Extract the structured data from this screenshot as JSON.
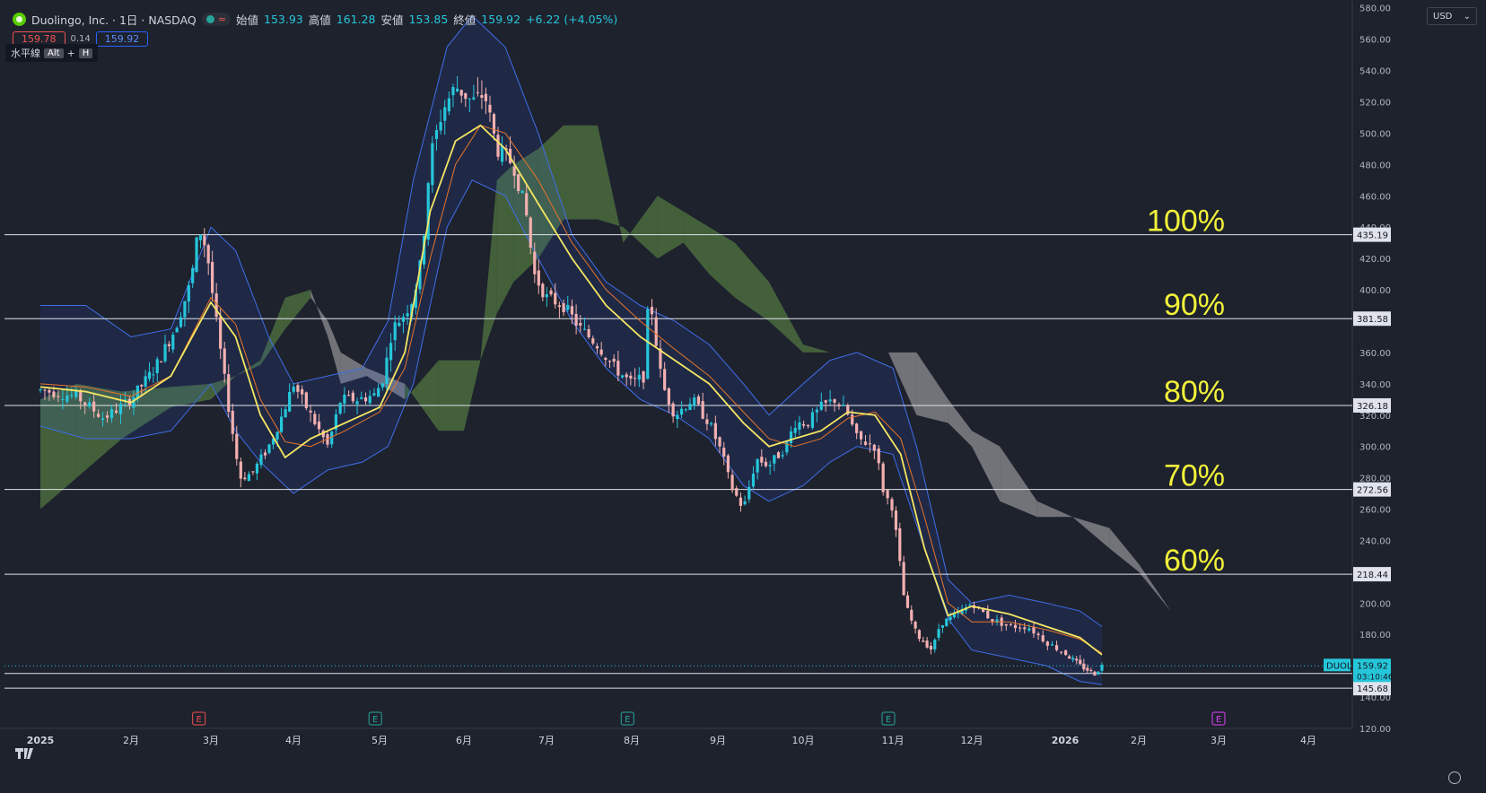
{
  "header": {
    "title": "Duolingo, Inc. · 1日 · NASDAQ",
    "open_label": "始値",
    "open_value": "153.93",
    "high_label": "高値",
    "high_value": "161.28",
    "low_label": "安値",
    "low_value": "153.85",
    "close_label": "終値",
    "close_value": "159.92",
    "change": "+6.22 (+4.05%)"
  },
  "trade": {
    "bid": "159.78",
    "spread": "0.14",
    "ask": "159.92"
  },
  "tooltip": {
    "tool": "水平線",
    "key1": "Alt",
    "plus": "+",
    "key2": "H"
  },
  "currency": "USD",
  "colors": {
    "bg": "#1e222d",
    "up": "#26c6da",
    "down": "#f4b0b0",
    "ema_fast": "#f5e663",
    "ema_slow": "#e8742a",
    "bb": "#3f6ee8",
    "cloud_bull": "#4a6b3e",
    "cloud_bear": "#8e8f93",
    "fib_label": "#f2f23a"
  },
  "chart_data": {
    "type": "candlestick",
    "symbol": "DUOL",
    "ylim": [
      120,
      585
    ],
    "yticks": [
      120,
      140,
      160,
      180,
      200,
      220,
      240,
      260,
      280,
      300,
      320,
      340,
      360,
      380,
      400,
      420,
      440,
      460,
      480,
      500,
      520,
      540,
      560,
      580
    ],
    "ytick_labels": [
      "120.00",
      "140.00",
      "160.00",
      "180.00",
      "200.00",
      "220.00",
      "240.00",
      "260.00",
      "280.00",
      "300.00",
      "320.00",
      "340.00",
      "360.00",
      "380.00",
      "400.00",
      "420.00",
      "440.00",
      "460.00",
      "480.00",
      "500.00",
      "520.00",
      "540.00",
      "560.00",
      "580.00"
    ],
    "xticks": [
      {
        "label": "2025",
        "t": 0
      },
      {
        "label": "2月",
        "t": 1
      },
      {
        "label": "3月",
        "t": 2
      },
      {
        "label": "4月",
        "t": 3
      },
      {
        "label": "5月",
        "t": 4
      },
      {
        "label": "6月",
        "t": 5
      },
      {
        "label": "7月",
        "t": 6
      },
      {
        "label": "8月",
        "t": 7
      },
      {
        "label": "9月",
        "t": 8
      },
      {
        "label": "10月",
        "t": 9
      },
      {
        "label": "11月",
        "t": 10
      },
      {
        "label": "12月",
        "t": 11
      },
      {
        "label": "2026",
        "t": 12
      },
      {
        "label": "2月",
        "t": 13
      },
      {
        "label": "3月",
        "t": 14
      },
      {
        "label": "4月",
        "t": 15
      }
    ],
    "price_path": [
      [
        0,
        336
      ],
      [
        0.4,
        332
      ],
      [
        0.7,
        318
      ],
      [
        1,
        330
      ],
      [
        1.3,
        350
      ],
      [
        1.55,
        375
      ],
      [
        1.75,
        405
      ],
      [
        1.85,
        440
      ],
      [
        1.95,
        425
      ],
      [
        2.05,
        385
      ],
      [
        2.2,
        330
      ],
      [
        2.35,
        280
      ],
      [
        2.5,
        283
      ],
      [
        2.7,
        300
      ],
      [
        2.85,
        318
      ],
      [
        3,
        340
      ],
      [
        3.2,
        320
      ],
      [
        3.4,
        300
      ],
      [
        3.55,
        330
      ],
      [
        3.75,
        330
      ],
      [
        3.95,
        333
      ],
      [
        4.05,
        345
      ],
      [
        4.15,
        375
      ],
      [
        4.3,
        385
      ],
      [
        4.4,
        395
      ],
      [
        4.5,
        420
      ],
      [
        4.6,
        485
      ],
      [
        4.75,
        515
      ],
      [
        4.9,
        530
      ],
      [
        5.1,
        520
      ],
      [
        5.25,
        525
      ],
      [
        5.4,
        490
      ],
      [
        5.6,
        480
      ],
      [
        5.75,
        450
      ],
      [
        5.85,
        410
      ],
      [
        6,
        395
      ],
      [
        6.2,
        390
      ],
      [
        6.4,
        375
      ],
      [
        6.6,
        365
      ],
      [
        6.8,
        350
      ],
      [
        7,
        340
      ],
      [
        7.15,
        345
      ],
      [
        7.2,
        400
      ],
      [
        7.35,
        340
      ],
      [
        7.5,
        320
      ],
      [
        7.7,
        330
      ],
      [
        7.9,
        315
      ],
      [
        8.05,
        295
      ],
      [
        8.15,
        275
      ],
      [
        8.3,
        260
      ],
      [
        8.45,
        292
      ],
      [
        8.6,
        288
      ],
      [
        8.8,
        300
      ],
      [
        8.9,
        315
      ],
      [
        9.05,
        315
      ],
      [
        9.2,
        325
      ],
      [
        9.35,
        330
      ],
      [
        9.5,
        320
      ],
      [
        9.6,
        305
      ],
      [
        9.8,
        300
      ],
      [
        9.9,
        270
      ],
      [
        10,
        261
      ],
      [
        10.15,
        200
      ],
      [
        10.3,
        180
      ],
      [
        10.5,
        170
      ],
      [
        10.6,
        187
      ],
      [
        10.8,
        192
      ],
      [
        11,
        200
      ],
      [
        11.2,
        190
      ],
      [
        11.4,
        185
      ],
      [
        11.6,
        185
      ],
      [
        11.8,
        175
      ],
      [
        12,
        168
      ],
      [
        12.2,
        160
      ],
      [
        12.4,
        155
      ],
      [
        12.5,
        160
      ]
    ],
    "last_price": 159.92,
    "countdown": "03:10:46",
    "horizontal_lines": [
      {
        "price": 435.19,
        "label": "435.19",
        "fib": "100%"
      },
      {
        "price": 381.58,
        "label": "381.58",
        "fib": "90%"
      },
      {
        "price": 326.18,
        "label": "326.18",
        "fib": "80%"
      },
      {
        "price": 272.56,
        "label": "272.56",
        "fib": "70%"
      },
      {
        "price": 218.44,
        "label": "218.44",
        "fib": "60%"
      },
      {
        "price": 155.09,
        "label": "155.09",
        "fib": ""
      },
      {
        "price": 145.68,
        "label": "145.68",
        "fib": ""
      }
    ],
    "earnings_markers": [
      {
        "t": 1.85,
        "label": "E",
        "color": "#ef5350"
      },
      {
        "t": 3.95,
        "label": "E",
        "color": "#26a69a"
      },
      {
        "t": 6.95,
        "label": "E",
        "color": "#26a69a"
      },
      {
        "t": 9.95,
        "label": "E",
        "color": "#26a69a"
      },
      {
        "t": 14.0,
        "label": "E",
        "color": "#e040fb"
      }
    ],
    "cloud": [
      [
        0,
        260,
        330
      ],
      [
        0.4,
        280,
        340
      ],
      [
        0.9,
        305,
        335
      ],
      [
        1.5,
        325,
        338
      ],
      [
        2,
        330,
        340
      ],
      [
        2.3,
        345,
        345
      ],
      [
        2.6,
        352,
        355
      ],
      [
        2.9,
        375,
        395
      ],
      [
        3.2,
        395,
        400
      ],
      [
        3.4,
        380,
        370
      ],
      [
        3.55,
        360,
        340
      ],
      [
        3.85,
        350,
        345
      ],
      [
        4.3,
        340,
        330
      ],
      [
        4.7,
        310,
        355
      ],
      [
        5,
        310,
        355
      ],
      [
        5.2,
        355,
        355
      ],
      [
        5.4,
        385,
        470
      ],
      [
        5.6,
        405,
        480
      ],
      [
        5.9,
        420,
        490
      ],
      [
        6.2,
        445,
        505
      ],
      [
        6.6,
        445,
        505
      ],
      [
        6.9,
        440,
        430
      ],
      [
        7.3,
        420,
        460
      ],
      [
        7.6,
        430,
        450
      ],
      [
        7.9,
        410,
        440
      ],
      [
        8.2,
        395,
        430
      ],
      [
        8.6,
        380,
        405
      ],
      [
        9.0,
        360,
        365
      ],
      [
        9.3,
        360,
        360
      ],
      [
        9.6,
        360,
        360
      ],
      [
        9.95,
        360,
        360
      ],
      [
        10.3,
        360,
        320
      ],
      [
        10.7,
        330,
        315
      ],
      [
        11.0,
        310,
        300
      ],
      [
        11.3,
        300,
        265
      ],
      [
        11.7,
        265,
        255
      ],
      [
        12.1,
        255,
        255
      ],
      [
        12.6,
        248,
        235
      ],
      [
        13,
        225,
        220
      ],
      [
        13.4,
        195,
        195
      ],
      [
        13.7,
        170,
        170
      ]
    ],
    "bb_upper": [
      [
        0,
        390
      ],
      [
        0.5,
        390
      ],
      [
        1,
        370
      ],
      [
        1.5,
        375
      ],
      [
        2,
        440
      ],
      [
        2.3,
        425
      ],
      [
        2.7,
        370
      ],
      [
        3,
        340
      ],
      [
        3.4,
        345
      ],
      [
        3.8,
        350
      ],
      [
        4.1,
        380
      ],
      [
        4.4,
        470
      ],
      [
        4.8,
        555
      ],
      [
        5.1,
        575
      ],
      [
        5.5,
        555
      ],
      [
        5.9,
        500
      ],
      [
        6.3,
        435
      ],
      [
        6.7,
        405
      ],
      [
        7.1,
        390
      ],
      [
        7.5,
        380
      ],
      [
        7.9,
        365
      ],
      [
        8.3,
        340
      ],
      [
        8.6,
        320
      ],
      [
        9.0,
        340
      ],
      [
        9.3,
        355
      ],
      [
        9.6,
        360
      ],
      [
        10.0,
        350
      ],
      [
        10.3,
        300
      ],
      [
        10.7,
        215
      ],
      [
        11.0,
        200
      ],
      [
        11.4,
        205
      ],
      [
        11.8,
        200
      ],
      [
        12.2,
        195
      ],
      [
        12.5,
        185
      ]
    ],
    "bb_lower": [
      [
        0,
        313
      ],
      [
        0.5,
        305
      ],
      [
        1,
        305
      ],
      [
        1.5,
        310
      ],
      [
        2,
        340
      ],
      [
        2.3,
        310
      ],
      [
        2.6,
        290
      ],
      [
        3,
        270
      ],
      [
        3.4,
        285
      ],
      [
        3.8,
        290
      ],
      [
        4.1,
        300
      ],
      [
        4.4,
        340
      ],
      [
        4.8,
        440
      ],
      [
        5.1,
        470
      ],
      [
        5.5,
        460
      ],
      [
        5.9,
        420
      ],
      [
        6.3,
        380
      ],
      [
        6.7,
        350
      ],
      [
        7.1,
        330
      ],
      [
        7.5,
        320
      ],
      [
        7.9,
        305
      ],
      [
        8.3,
        275
      ],
      [
        8.6,
        265
      ],
      [
        9.0,
        275
      ],
      [
        9.3,
        290
      ],
      [
        9.6,
        300
      ],
      [
        10.0,
        295
      ],
      [
        10.3,
        250
      ],
      [
        10.7,
        190
      ],
      [
        11.0,
        170
      ],
      [
        11.4,
        165
      ],
      [
        11.8,
        160
      ],
      [
        12.2,
        150
      ],
      [
        12.5,
        148
      ]
    ],
    "ema_fast": [
      [
        0,
        338
      ],
      [
        0.5,
        335
      ],
      [
        1,
        328
      ],
      [
        1.5,
        345
      ],
      [
        2,
        392
      ],
      [
        2.3,
        370
      ],
      [
        2.6,
        320
      ],
      [
        2.9,
        293
      ],
      [
        3.2,
        305
      ],
      [
        3.6,
        315
      ],
      [
        4.0,
        325
      ],
      [
        4.3,
        360
      ],
      [
        4.6,
        450
      ],
      [
        4.9,
        495
      ],
      [
        5.2,
        505
      ],
      [
        5.5,
        490
      ],
      [
        5.9,
        455
      ],
      [
        6.3,
        420
      ],
      [
        6.7,
        390
      ],
      [
        7.1,
        370
      ],
      [
        7.5,
        355
      ],
      [
        7.9,
        340
      ],
      [
        8.3,
        315
      ],
      [
        8.6,
        300
      ],
      [
        8.9,
        305
      ],
      [
        9.2,
        310
      ],
      [
        9.5,
        322
      ],
      [
        9.8,
        320
      ],
      [
        10.1,
        295
      ],
      [
        10.4,
        235
      ],
      [
        10.7,
        192
      ],
      [
        11.0,
        198
      ],
      [
        11.4,
        193
      ],
      [
        11.8,
        185
      ],
      [
        12.2,
        178
      ],
      [
        12.5,
        167
      ]
    ],
    "ema_slow": [
      [
        0,
        340
      ],
      [
        0.5,
        338
      ],
      [
        1,
        332
      ],
      [
        1.5,
        345
      ],
      [
        2,
        395
      ],
      [
        2.3,
        378
      ],
      [
        2.6,
        330
      ],
      [
        2.9,
        303
      ],
      [
        3.2,
        300
      ],
      [
        3.6,
        310
      ],
      [
        4.0,
        322
      ],
      [
        4.3,
        350
      ],
      [
        4.6,
        420
      ],
      [
        4.9,
        480
      ],
      [
        5.2,
        505
      ],
      [
        5.5,
        500
      ],
      [
        5.9,
        470
      ],
      [
        6.3,
        430
      ],
      [
        6.7,
        400
      ],
      [
        7.1,
        380
      ],
      [
        7.5,
        362
      ],
      [
        7.9,
        345
      ],
      [
        8.3,
        322
      ],
      [
        8.6,
        305
      ],
      [
        8.9,
        300
      ],
      [
        9.2,
        305
      ],
      [
        9.5,
        318
      ],
      [
        9.8,
        322
      ],
      [
        10.1,
        305
      ],
      [
        10.4,
        255
      ],
      [
        10.7,
        200
      ],
      [
        11.0,
        188
      ],
      [
        11.4,
        188
      ],
      [
        11.8,
        183
      ],
      [
        12.2,
        177
      ],
      [
        12.5,
        168
      ]
    ]
  }
}
